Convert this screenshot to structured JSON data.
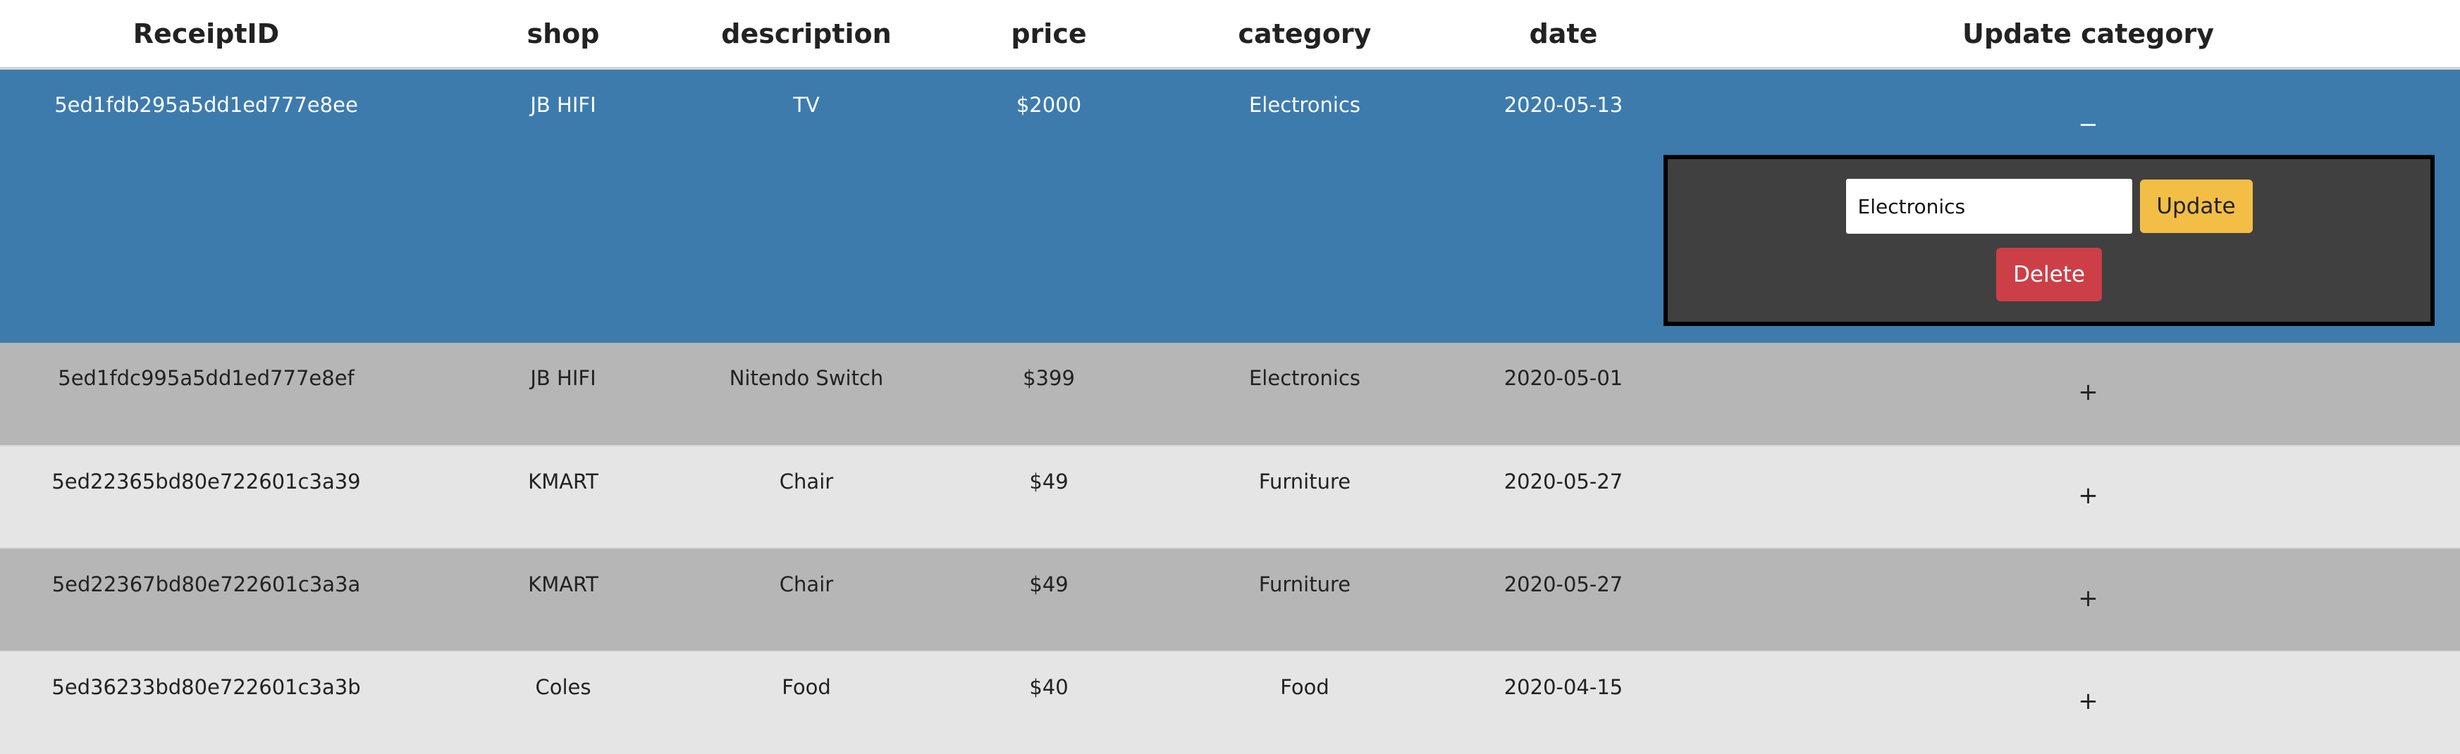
{
  "table": {
    "headers": [
      "ReceiptID",
      "shop",
      "description",
      "price",
      "category",
      "date",
      "Update category"
    ],
    "rows": [
      {
        "id": "5ed1fdb295a5dd1ed777e8ee",
        "shop": "JB HIFI",
        "description": "TV",
        "price": "$2000",
        "category": "Electronics",
        "date": "2020-05-13",
        "toggle": "−",
        "expanded": true
      },
      {
        "id": "5ed1fdc995a5dd1ed777e8ef",
        "shop": "JB HIFI",
        "description": "Nitendo Switch",
        "price": "$399",
        "category": "Electronics",
        "date": "2020-05-01",
        "toggle": "+",
        "expanded": false
      },
      {
        "id": "5ed22365bd80e722601c3a39",
        "shop": "KMART",
        "description": "Chair",
        "price": "$49",
        "category": "Furniture",
        "date": "2020-05-27",
        "toggle": "+",
        "expanded": false
      },
      {
        "id": "5ed22367bd80e722601c3a3a",
        "shop": "KMART",
        "description": "Chair",
        "price": "$49",
        "category": "Furniture",
        "date": "2020-05-27",
        "toggle": "+",
        "expanded": false
      },
      {
        "id": "5ed36233bd80e722601c3a3b",
        "shop": "Coles",
        "description": "Food",
        "price": "$40",
        "category": "Food",
        "date": "2020-04-15",
        "toggle": "+",
        "expanded": false
      }
    ]
  },
  "editor": {
    "category_value": "Electronics",
    "update_label": "Update",
    "delete_label": "Delete"
  },
  "colors": {
    "selected_row": "#3d7bad",
    "dark_row": "#b6b6b6",
    "light_row": "#e5e5e5",
    "panel": "#404040",
    "update_button": "#f3be45",
    "delete_button": "#cc3f47"
  }
}
